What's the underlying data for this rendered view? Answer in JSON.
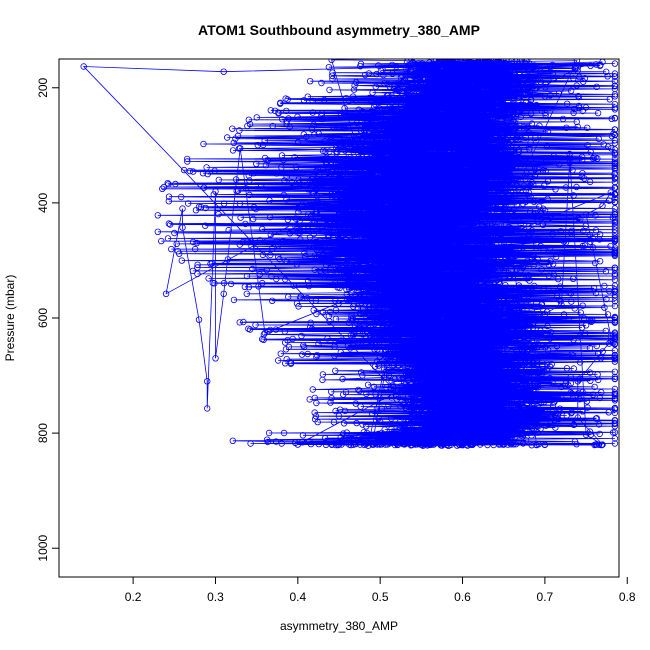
{
  "chart_data": {
    "type": "scatter",
    "title": "ATOM1 Southbound asymmetry_380_AMP",
    "xlabel": "asymmetry_380_AMP",
    "ylabel": "Pressure (mbar)",
    "xlim": [
      0.11,
      0.79
    ],
    "ylim": [
      1050,
      150
    ],
    "y_inverted": true,
    "x_ticks": [
      0.2,
      0.3,
      0.4,
      0.5,
      0.6,
      0.7,
      0.8
    ],
    "y_ticks": [
      200,
      400,
      600,
      800,
      1000
    ],
    "grid": false,
    "legend": "none",
    "marker": "open-circle",
    "connected_lines": true,
    "series_color": "#0000ff",
    "density_profile": [
      {
        "pressure": 160,
        "center": 0.62,
        "spread": 0.05
      },
      {
        "pressure": 220,
        "center": 0.6,
        "spread": 0.06
      },
      {
        "pressure": 300,
        "center": 0.57,
        "spread": 0.08
      },
      {
        "pressure": 380,
        "center": 0.55,
        "spread": 0.09
      },
      {
        "pressure": 460,
        "center": 0.55,
        "spread": 0.09
      },
      {
        "pressure": 540,
        "center": 0.57,
        "spread": 0.08
      },
      {
        "pressure": 620,
        "center": 0.59,
        "spread": 0.07
      },
      {
        "pressure": 700,
        "center": 0.61,
        "spread": 0.06
      },
      {
        "pressure": 780,
        "center": 0.62,
        "spread": 0.055
      },
      {
        "pressure": 820,
        "center": 0.57,
        "spread": 0.08
      }
    ],
    "notable_points": [
      {
        "x": 0.14,
        "y": 163
      },
      {
        "x": 0.31,
        "y": 172
      },
      {
        "x": 0.77,
        "y": 155
      },
      {
        "x": 0.74,
        "y": 165
      },
      {
        "x": 0.24,
        "y": 558
      },
      {
        "x": 0.26,
        "y": 410
      },
      {
        "x": 0.26,
        "y": 443
      },
      {
        "x": 0.28,
        "y": 603
      },
      {
        "x": 0.29,
        "y": 710
      },
      {
        "x": 0.29,
        "y": 757
      },
      {
        "x": 0.3,
        "y": 380
      },
      {
        "x": 0.3,
        "y": 670
      },
      {
        "x": 0.31,
        "y": 558
      },
      {
        "x": 0.33,
        "y": 305
      },
      {
        "x": 0.36,
        "y": 626
      },
      {
        "x": 0.78,
        "y": 382
      },
      {
        "x": 0.77,
        "y": 405
      },
      {
        "x": 0.75,
        "y": 420
      },
      {
        "x": 0.78,
        "y": 632
      },
      {
        "x": 0.78,
        "y": 640
      },
      {
        "x": 0.74,
        "y": 710
      },
      {
        "x": 0.74,
        "y": 773
      },
      {
        "x": 0.77,
        "y": 820
      },
      {
        "x": 0.75,
        "y": 803
      },
      {
        "x": 0.73,
        "y": 315
      },
      {
        "x": 0.73,
        "y": 330
      },
      {
        "x": 0.72,
        "y": 577
      },
      {
        "x": 0.4,
        "y": 820
      },
      {
        "x": 0.45,
        "y": 820
      },
      {
        "x": 0.5,
        "y": 820
      },
      {
        "x": 0.55,
        "y": 820
      },
      {
        "x": 0.6,
        "y": 820
      },
      {
        "x": 0.65,
        "y": 820
      },
      {
        "x": 0.7,
        "y": 820
      }
    ]
  }
}
